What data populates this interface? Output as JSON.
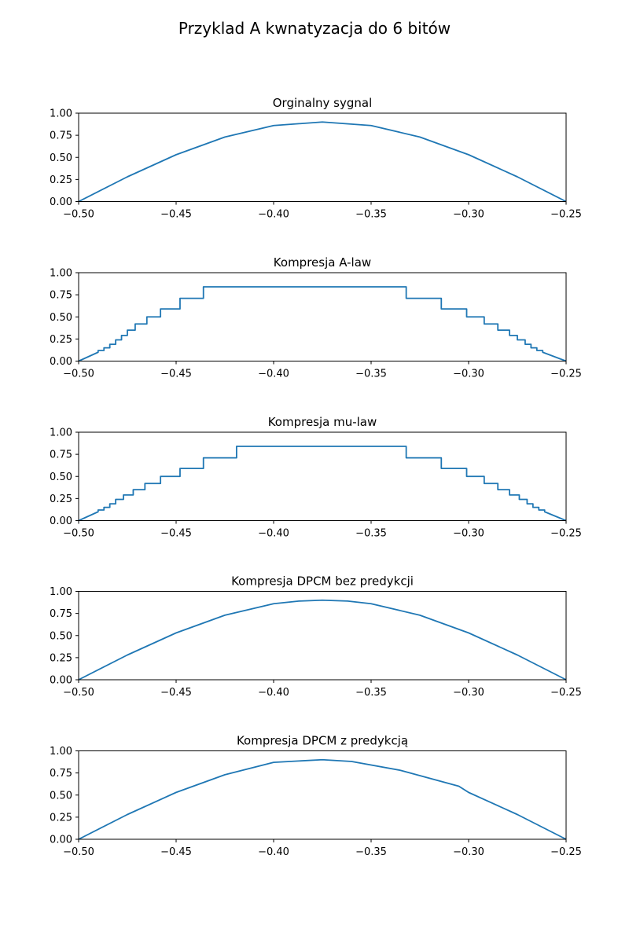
{
  "figure": {
    "title": "Przyklad  A kwnatyzacja do 6 bitów",
    "line_color": "#1f77b4"
  },
  "chart_data": [
    {
      "type": "line",
      "title": "Orginalny sygnal",
      "xlabel": "",
      "ylabel": "",
      "xlim": [
        -0.5,
        -0.25
      ],
      "ylim": [
        0.0,
        1.0
      ],
      "xticks": [
        "−0.50",
        "−0.45",
        "−0.40",
        "−0.35",
        "−0.30",
        "−0.25"
      ],
      "yticks": [
        "0.00",
        "0.25",
        "0.50",
        "0.75",
        "1.00"
      ],
      "grid": false,
      "series": [
        {
          "x": [
            -0.5,
            -0.475,
            -0.45,
            -0.425,
            -0.4,
            -0.375,
            -0.35,
            -0.325,
            -0.3,
            -0.275,
            -0.25
          ],
          "values": [
            0.0,
            0.28,
            0.53,
            0.73,
            0.86,
            0.9,
            0.86,
            0.73,
            0.53,
            0.28,
            0.0
          ]
        }
      ]
    },
    {
      "type": "line",
      "title": "Kompresja A-law",
      "xlabel": "",
      "ylabel": "",
      "xlim": [
        -0.5,
        -0.25
      ],
      "ylim": [
        0.0,
        1.0
      ],
      "xticks": [
        "−0.50",
        "−0.45",
        "−0.40",
        "−0.35",
        "−0.30",
        "−0.25"
      ],
      "yticks": [
        "0.00",
        "0.25",
        "0.50",
        "0.75",
        "1.00"
      ],
      "grid": false,
      "series": [
        {
          "x": [
            -0.5,
            -0.49,
            -0.49,
            -0.487,
            -0.487,
            -0.484,
            -0.484,
            -0.481,
            -0.481,
            -0.478,
            -0.478,
            -0.475,
            -0.475,
            -0.471,
            -0.471,
            -0.465,
            -0.465,
            -0.458,
            -0.458,
            -0.448,
            -0.448,
            -0.436,
            -0.436,
            -0.419,
            -0.419,
            -0.332,
            -0.332,
            -0.314,
            -0.314,
            -0.301,
            -0.301,
            -0.292,
            -0.292,
            -0.285,
            -0.285,
            -0.279,
            -0.279,
            -0.275,
            -0.275,
            -0.271,
            -0.271,
            -0.268,
            -0.268,
            -0.265,
            -0.265,
            -0.262,
            -0.262,
            -0.25
          ],
          "values": [
            0.0,
            0.1,
            0.12,
            0.12,
            0.15,
            0.15,
            0.19,
            0.19,
            0.24,
            0.24,
            0.29,
            0.29,
            0.35,
            0.35,
            0.42,
            0.42,
            0.5,
            0.5,
            0.59,
            0.59,
            0.71,
            0.71,
            0.84,
            0.84,
            0.84,
            0.84,
            0.71,
            0.71,
            0.59,
            0.59,
            0.5,
            0.5,
            0.42,
            0.42,
            0.35,
            0.35,
            0.29,
            0.29,
            0.24,
            0.24,
            0.19,
            0.19,
            0.15,
            0.15,
            0.12,
            0.12,
            0.1,
            0.0
          ]
        }
      ]
    },
    {
      "type": "line",
      "title": "Kompresja mu-law",
      "xlabel": "",
      "ylabel": "",
      "xlim": [
        -0.5,
        -0.25
      ],
      "ylim": [
        0.0,
        1.0
      ],
      "xticks": [
        "−0.50",
        "−0.45",
        "−0.40",
        "−0.35",
        "−0.30",
        "−0.25"
      ],
      "yticks": [
        "0.00",
        "0.25",
        "0.50",
        "0.75",
        "1.00"
      ],
      "grid": false,
      "series": [
        {
          "x": [
            -0.5,
            -0.49,
            -0.49,
            -0.487,
            -0.487,
            -0.484,
            -0.484,
            -0.481,
            -0.481,
            -0.477,
            -0.477,
            -0.472,
            -0.472,
            -0.466,
            -0.466,
            -0.458,
            -0.458,
            -0.448,
            -0.448,
            -0.436,
            -0.436,
            -0.419,
            -0.419,
            -0.332,
            -0.332,
            -0.314,
            -0.314,
            -0.301,
            -0.301,
            -0.292,
            -0.292,
            -0.285,
            -0.285,
            -0.279,
            -0.279,
            -0.274,
            -0.274,
            -0.27,
            -0.27,
            -0.267,
            -0.267,
            -0.264,
            -0.264,
            -0.261,
            -0.261,
            -0.25
          ],
          "values": [
            0.0,
            0.1,
            0.12,
            0.12,
            0.15,
            0.15,
            0.19,
            0.19,
            0.24,
            0.24,
            0.29,
            0.29,
            0.35,
            0.35,
            0.42,
            0.42,
            0.5,
            0.5,
            0.59,
            0.59,
            0.71,
            0.71,
            0.84,
            0.84,
            0.71,
            0.71,
            0.59,
            0.59,
            0.5,
            0.5,
            0.42,
            0.42,
            0.35,
            0.35,
            0.29,
            0.29,
            0.24,
            0.24,
            0.19,
            0.19,
            0.15,
            0.15,
            0.12,
            0.12,
            0.1,
            0.0
          ]
        }
      ]
    },
    {
      "type": "line",
      "title": "Kompresja DPCM bez predykcji",
      "xlabel": "",
      "ylabel": "",
      "xlim": [
        -0.5,
        -0.25
      ],
      "ylim": [
        0.0,
        1.0
      ],
      "xticks": [
        "−0.50",
        "−0.45",
        "−0.40",
        "−0.35",
        "−0.30",
        "−0.25"
      ],
      "yticks": [
        "0.00",
        "0.25",
        "0.50",
        "0.75",
        "1.00"
      ],
      "grid": false,
      "series": [
        {
          "x": [
            -0.5,
            -0.475,
            -0.45,
            -0.425,
            -0.4,
            -0.387,
            -0.375,
            -0.362,
            -0.35,
            -0.325,
            -0.3,
            -0.275,
            -0.25
          ],
          "values": [
            0.0,
            0.28,
            0.53,
            0.73,
            0.86,
            0.89,
            0.9,
            0.89,
            0.86,
            0.73,
            0.53,
            0.28,
            0.0
          ]
        }
      ]
    },
    {
      "type": "line",
      "title": "Kompresja DPCM z predykcją",
      "xlabel": "",
      "ylabel": "",
      "xlim": [
        -0.5,
        -0.25
      ],
      "ylim": [
        0.0,
        1.0
      ],
      "xticks": [
        "−0.50",
        "−0.45",
        "−0.40",
        "−0.35",
        "−0.30",
        "−0.25"
      ],
      "yticks": [
        "0.00",
        "0.25",
        "0.50",
        "0.75",
        "1.00"
      ],
      "grid": false,
      "series": [
        {
          "x": [
            -0.5,
            -0.475,
            -0.45,
            -0.425,
            -0.4,
            -0.375,
            -0.36,
            -0.335,
            -0.305,
            -0.3,
            -0.275,
            -0.25
          ],
          "values": [
            0.0,
            0.28,
            0.53,
            0.73,
            0.87,
            0.9,
            0.88,
            0.78,
            0.6,
            0.53,
            0.28,
            0.0
          ]
        }
      ]
    }
  ]
}
